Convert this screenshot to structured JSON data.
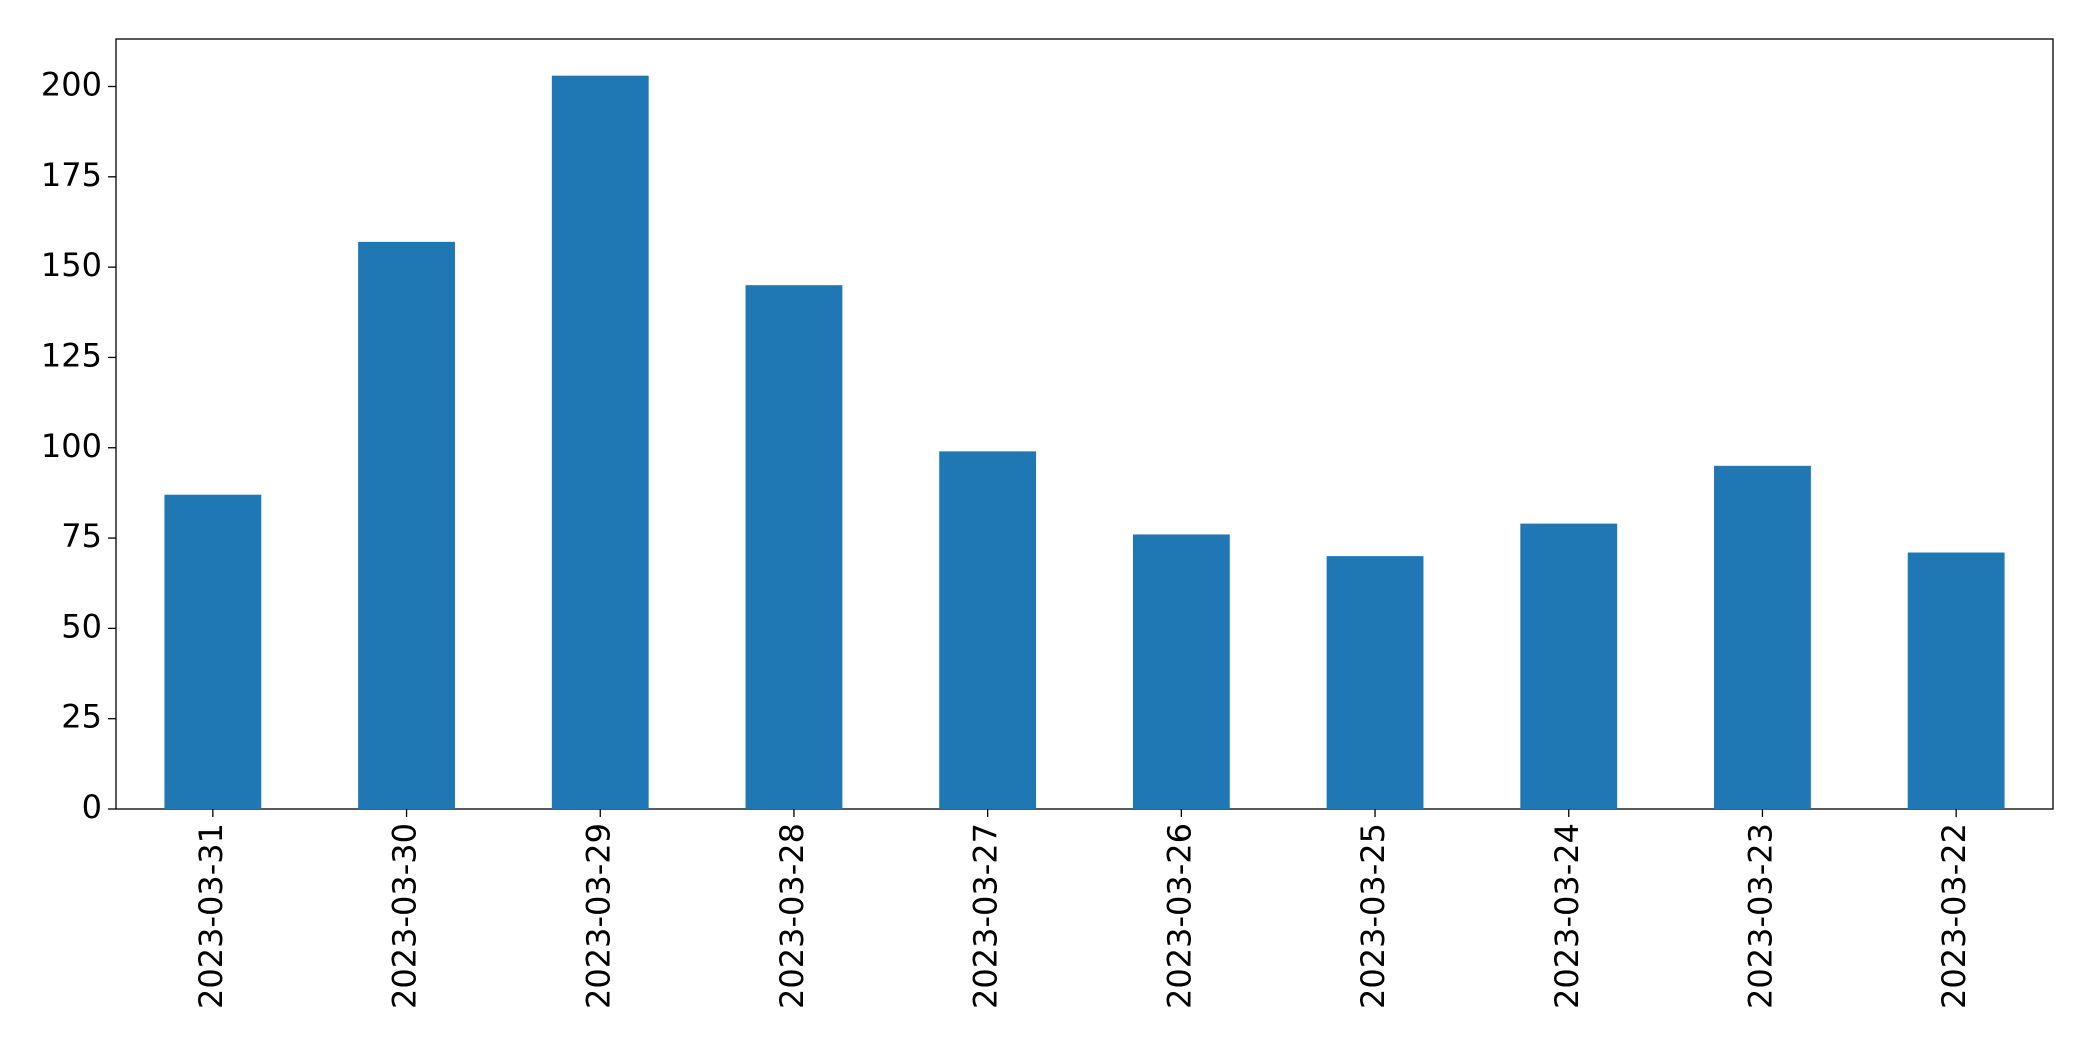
{
  "chart_data": {
    "type": "bar",
    "categories": [
      "2023-03-31",
      "2023-03-30",
      "2023-03-29",
      "2023-03-28",
      "2023-03-27",
      "2023-03-26",
      "2023-03-25",
      "2023-03-24",
      "2023-03-23",
      "2023-03-22"
    ],
    "values": [
      87,
      157,
      203,
      145,
      99,
      76,
      70,
      79,
      95,
      71
    ],
    "color": "#1f77b4",
    "ylim": [
      0,
      213.15
    ],
    "yticks": [
      0,
      25,
      50,
      75,
      100,
      125,
      150,
      175,
      200
    ],
    "grid": false
  }
}
